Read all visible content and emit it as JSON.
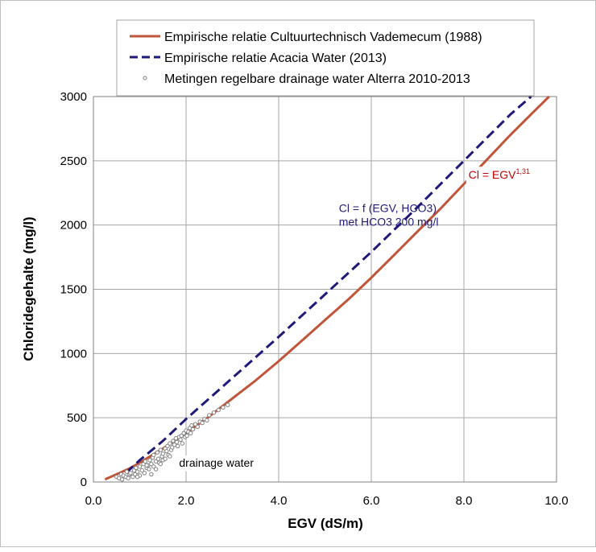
{
  "chart_data": {
    "type": "line",
    "xlabel": "EGV (dS/m)",
    "ylabel": "Chloridegehalte (mg/l)",
    "xlim": [
      0,
      10
    ],
    "ylim": [
      0,
      3000
    ],
    "xticks": [
      0,
      2,
      4,
      6,
      8,
      10
    ],
    "xtick_labels": [
      "0.0",
      "2.0",
      "4.0",
      "6.0",
      "8.0",
      "10.0"
    ],
    "yticks": [
      0,
      500,
      1000,
      1500,
      2000,
      2500,
      3000
    ],
    "ytick_labels": [
      "0",
      "500",
      "1000",
      "1500",
      "2000",
      "2500",
      "3000"
    ],
    "grid": true,
    "legend_position": "top",
    "series": [
      {
        "name": "Empirische relatie Cultuurtechnisch Vademecum (1988)",
        "style": "solid",
        "color": "#c0553a",
        "x": [
          0.25,
          0.5,
          0.75,
          1.0,
          1.5,
          2.0,
          2.5,
          3.0,
          3.5,
          4.0,
          4.5,
          5.0,
          5.5,
          6.0,
          6.5,
          7.0,
          7.5,
          8.0,
          8.5,
          9.0,
          9.5,
          9.84
        ],
        "y": [
          20,
          60,
          100,
          150,
          260,
          380,
          510,
          650,
          790,
          940,
          1100,
          1260,
          1420,
          1590,
          1770,
          1950,
          2130,
          2320,
          2510,
          2700,
          2880,
          3000
        ]
      },
      {
        "name": "Empirische relatie  Acacia Water (2013)",
        "style": "dashed",
        "color": "#1f1a7a",
        "x": [
          0.7,
          1.0,
          1.5,
          2.0,
          3.0,
          4.0,
          5.0,
          6.0,
          7.0,
          8.0,
          9.0,
          9.45
        ],
        "y": [
          70,
          170,
          320,
          490,
          810,
          1130,
          1460,
          1790,
          2140,
          2500,
          2860,
          3000
        ]
      },
      {
        "name": "Metingen regelbare drainage water Alterra 2010-2013",
        "style": "markers",
        "color": "#808080",
        "x": [
          0.5,
          0.55,
          0.6,
          0.62,
          0.65,
          0.7,
          0.72,
          0.75,
          0.78,
          0.8,
          0.85,
          0.88,
          0.9,
          0.92,
          0.95,
          1.0,
          1.0,
          1.05,
          1.08,
          1.1,
          1.12,
          1.15,
          1.18,
          1.2,
          1.22,
          1.25,
          1.28,
          1.3,
          1.3,
          1.35,
          1.38,
          1.4,
          1.42,
          1.45,
          1.48,
          1.5,
          1.5,
          1.55,
          1.58,
          1.6,
          1.62,
          1.65,
          1.68,
          1.7,
          1.72,
          1.75,
          1.78,
          1.8,
          1.82,
          1.85,
          1.88,
          1.9,
          1.92,
          1.95,
          1.98,
          2.0,
          2.02,
          2.05,
          2.08,
          2.1,
          2.12,
          2.15,
          2.2,
          2.25,
          2.3,
          2.35,
          2.4,
          2.45,
          2.5,
          2.6,
          2.7,
          2.8,
          2.9,
          1.35,
          1.45,
          1.25,
          1.55,
          1.15,
          1.65,
          0.95
        ],
        "y": [
          40,
          30,
          60,
          20,
          50,
          40,
          80,
          30,
          60,
          70,
          40,
          90,
          60,
          110,
          80,
          50,
          120,
          90,
          140,
          70,
          160,
          110,
          130,
          100,
          170,
          140,
          190,
          120,
          210,
          160,
          230,
          180,
          150,
          250,
          200,
          220,
          170,
          260,
          240,
          280,
          210,
          300,
          250,
          270,
          320,
          290,
          340,
          310,
          280,
          350,
          330,
          360,
          300,
          380,
          350,
          400,
          360,
          390,
          420,
          380,
          440,
          410,
          450,
          430,
          470,
          460,
          490,
          480,
          520,
          540,
          560,
          580,
          600,
          100,
          140,
          60,
          180,
          130,
          200,
          40
        ]
      }
    ],
    "annotations": [
      {
        "text": "Cl = EGV",
        "superscript": "1,31",
        "color": "#c00000",
        "x": 8.1,
        "y": 2360
      },
      {
        "text": "Cl = f (EGV, HCO3)",
        "color": "#1f1a7a",
        "x": 5.3,
        "y": 2100
      },
      {
        "text": "met HCO3 200 mg/l",
        "color": "#1f1a7a",
        "x": 5.3,
        "y": 1995
      },
      {
        "text": "drainage water",
        "color": "#000000",
        "x": 1.85,
        "y": 120
      }
    ]
  }
}
